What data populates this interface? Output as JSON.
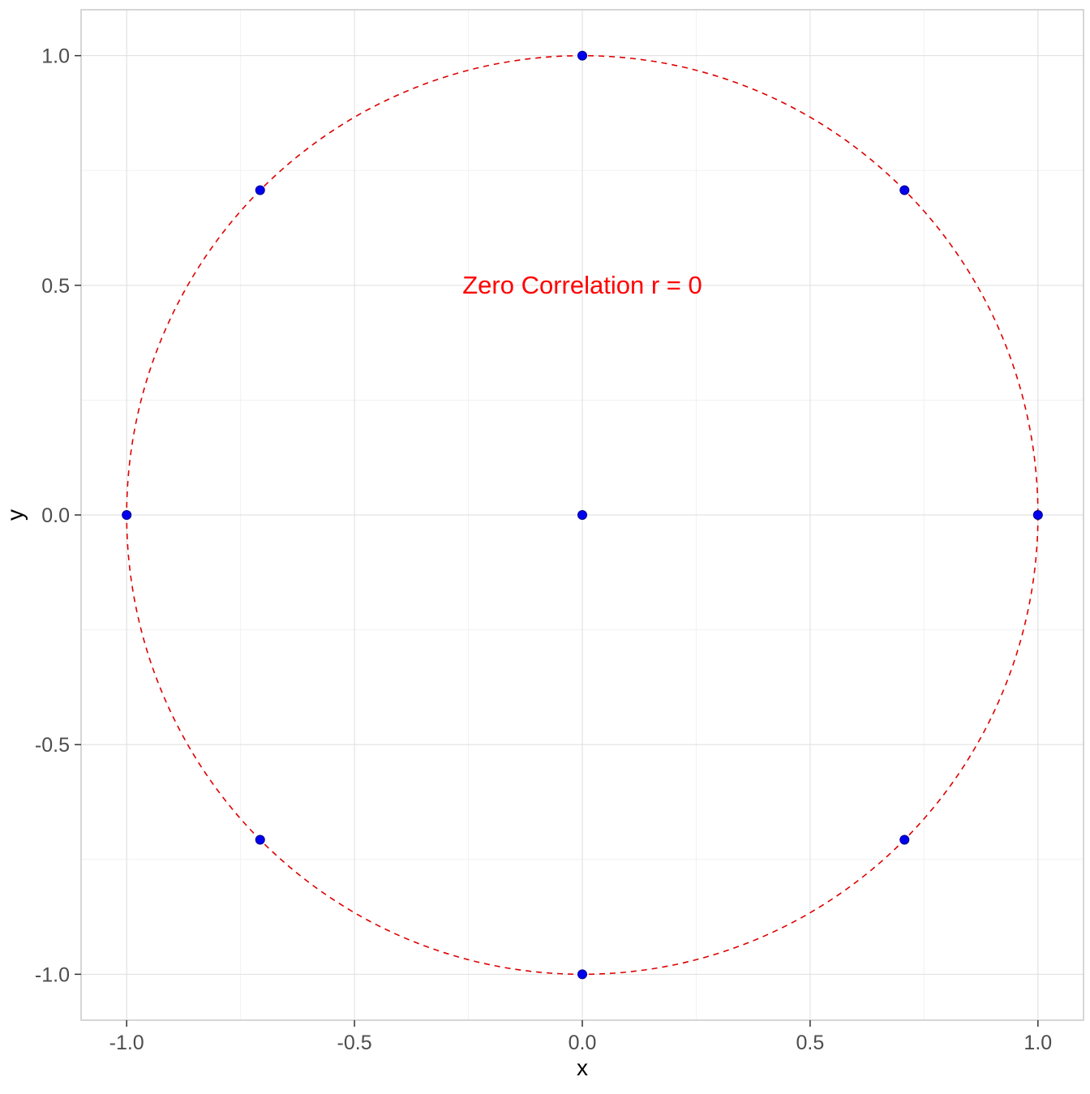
{
  "chart_data": {
    "type": "scatter",
    "title": "",
    "xlabel": "x",
    "ylabel": "y",
    "xlim": [
      -1.1,
      1.1
    ],
    "ylim": [
      -1.1,
      1.1
    ],
    "x_ticks": [
      -1.0,
      -0.5,
      0.0,
      0.5,
      1.0
    ],
    "x_tick_labels": [
      "-1.0",
      "-0.5",
      "0.0",
      "0.5",
      "1.0"
    ],
    "y_ticks": [
      -1.0,
      -0.5,
      0.0,
      0.5,
      1.0
    ],
    "y_tick_labels": [
      "-1.0",
      "-0.5",
      "0.0",
      "0.5",
      "1.0"
    ],
    "x_minor": [
      -0.75,
      -0.25,
      0.25,
      0.75
    ],
    "y_minor": [
      -0.75,
      -0.25,
      0.25,
      0.75
    ],
    "grid": "major-and-minor",
    "legend": "none",
    "points": [
      [
        1,
        0
      ],
      [
        0.7071,
        0.7071
      ],
      [
        0,
        1
      ],
      [
        -0.7071,
        0.7071
      ],
      [
        -1,
        0
      ],
      [
        -0.7071,
        -0.7071
      ],
      [
        0,
        -1
      ],
      [
        0.7071,
        -0.7071
      ],
      [
        0,
        0
      ]
    ],
    "point_color": "#0000EE",
    "point_stroke": "#00008B",
    "circle": {
      "cx": 0,
      "cy": 0,
      "r": 1,
      "linetype": "dashed",
      "color": "#DD0000"
    },
    "annotation": {
      "text": "Zero Correlation r = 0",
      "x": 0,
      "y": 0.5,
      "color": "#FF0000"
    },
    "style": {
      "major_grid_color": "#DEDEDE",
      "minor_grid_color": "#F1F1F1",
      "panel_border_color": "#C9C9C9",
      "tick_color": "#333333",
      "tick_label_color": "#4D4D4D",
      "axis_title_color": "#000000",
      "background": "#FFFFFF"
    }
  }
}
